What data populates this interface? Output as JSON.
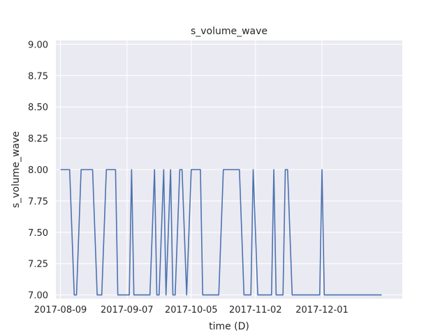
{
  "chart_data": {
    "type": "line",
    "title": "s_volume_wave",
    "xlabel": "time (D)",
    "ylabel": "s_volume_wave",
    "x_is_date": true,
    "xlim": [
      "2017-08-07",
      "2018-01-05"
    ],
    "ylim": [
      6.97,
      9.03
    ],
    "x_ticks": [
      "2017-08-09",
      "2017-09-07",
      "2017-10-05",
      "2017-11-02",
      "2017-12-01"
    ],
    "y_ticks": [
      7.0,
      7.25,
      7.5,
      7.75,
      8.0,
      8.25,
      8.5,
      8.75,
      9.0
    ],
    "y_tick_labels": [
      "7.00",
      "7.25",
      "7.50",
      "7.75",
      "8.00",
      "8.25",
      "8.50",
      "8.75",
      "9.00"
    ],
    "grid": true,
    "background": "#eaeaf2",
    "series": [
      {
        "color": "#4c72b0",
        "points": [
          [
            "2017-08-09",
            8
          ],
          [
            "2017-08-13",
            8
          ],
          [
            "2017-08-15",
            7
          ],
          [
            "2017-08-16",
            7
          ],
          [
            "2017-08-18",
            8
          ],
          [
            "2017-08-23",
            8
          ],
          [
            "2017-08-25",
            7
          ],
          [
            "2017-08-27",
            7
          ],
          [
            "2017-08-29",
            8
          ],
          [
            "2017-09-02",
            8
          ],
          [
            "2017-09-03",
            7
          ],
          [
            "2017-09-08",
            7
          ],
          [
            "2017-09-09",
            8
          ],
          [
            "2017-09-10",
            7
          ],
          [
            "2017-09-17",
            7
          ],
          [
            "2017-09-19",
            8
          ],
          [
            "2017-09-20",
            7
          ],
          [
            "2017-09-21",
            7
          ],
          [
            "2017-09-23",
            8
          ],
          [
            "2017-09-24",
            7
          ],
          [
            "2017-09-26",
            8
          ],
          [
            "2017-09-27",
            7
          ],
          [
            "2017-09-28",
            7
          ],
          [
            "2017-09-30",
            8
          ],
          [
            "2017-10-01",
            8
          ],
          [
            "2017-10-03",
            7
          ],
          [
            "2017-10-05",
            8
          ],
          [
            "2017-10-09",
            8
          ],
          [
            "2017-10-10",
            7
          ],
          [
            "2017-10-17",
            7
          ],
          [
            "2017-10-19",
            8
          ],
          [
            "2017-10-26",
            8
          ],
          [
            "2017-10-28",
            7
          ],
          [
            "2017-10-31",
            7
          ],
          [
            "2017-11-01",
            8
          ],
          [
            "2017-11-03",
            7
          ],
          [
            "2017-11-09",
            7
          ],
          [
            "2017-11-10",
            8
          ],
          [
            "2017-11-11",
            7
          ],
          [
            "2017-11-14",
            7
          ],
          [
            "2017-11-15",
            8
          ],
          [
            "2017-11-16",
            8
          ],
          [
            "2017-11-18",
            7
          ],
          [
            "2017-11-30",
            7
          ],
          [
            "2017-12-01",
            8
          ],
          [
            "2017-12-02",
            7
          ],
          [
            "2017-12-27",
            7
          ]
        ]
      }
    ]
  }
}
